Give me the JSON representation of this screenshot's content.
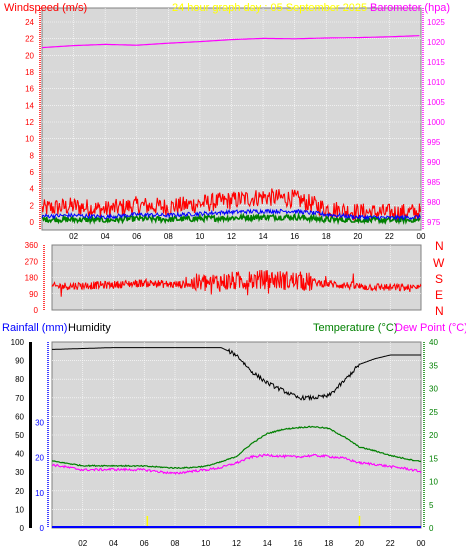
{
  "header": {
    "wind_label": "Windspeed (m/s)",
    "title": "24 hour graph day : 05 September 2025",
    "baro_label": "Barometer (hpa)"
  },
  "lower_header": {
    "rain_label": "Rainfall (mm)",
    "humidity_label": "Humidity",
    "temp_label": "Temperature (°C)",
    "dew_label": "Dew Point (°C)"
  },
  "direction_labels": [
    "N",
    "W",
    "S",
    "E",
    "N"
  ],
  "colors": {
    "panel_bg": "#d8d8d8",
    "wind_avg": "#0000ff",
    "wind_gust": "#ff0000",
    "wind_low": "#008000",
    "baro": "#ff00ff",
    "wind_dir": "#ff0000",
    "temp": "#008000",
    "dew": "#ff00ff",
    "humidity": "#000000",
    "rain": "#0000ff",
    "title": "#ffff00",
    "axis_wind": "#ff0000",
    "axis_baro": "#ff00ff",
    "axis_rain": "#0000ff",
    "axis_temp": "#008000"
  },
  "chart_data": [
    {
      "type": "line",
      "title": "24 hour graph day : 05 September 2025",
      "x_ticks": [
        "02",
        "04",
        "06",
        "08",
        "10",
        "12",
        "14",
        "16",
        "18",
        "20",
        "22",
        "00"
      ],
      "y_left": {
        "label": "Windspeed (m/s)",
        "ticks": [
          0,
          2,
          4,
          6,
          8,
          10,
          12,
          14,
          16,
          18,
          20,
          22,
          24
        ],
        "range": [
          0,
          25
        ]
      },
      "y_right": {
        "label": "Barometer (hpa)",
        "ticks": [
          975,
          980,
          985,
          990,
          995,
          1000,
          1005,
          1010,
          1015,
          1020,
          1025
        ],
        "range": [
          973,
          1027
        ]
      },
      "series": [
        {
          "name": "Barometer (hpa)",
          "x": [
            0,
            2,
            4,
            6,
            8,
            10,
            12,
            14,
            16,
            18,
            20,
            22,
            24
          ],
          "values": [
            1018.6,
            1019.1,
            1019.4,
            1019.2,
            1019.7,
            1020.1,
            1020.6,
            1020.9,
            1020.8,
            1021.0,
            1021.1,
            1021.3,
            1021.6
          ]
        },
        {
          "x": [
            0,
            2,
            4,
            6,
            8,
            10,
            12,
            14,
            16,
            18,
            20,
            22,
            24
          ],
          "values": [
            0.7,
            0.8,
            0.6,
            0.9,
            0.8,
            1.0,
            1.2,
            1.3,
            1.3,
            0.9,
            0.6,
            0.5,
            0.6
          ]
        },
        {
          "x": [
            0,
            2,
            4,
            6,
            8,
            10,
            12,
            14,
            16,
            18,
            20,
            22,
            24
          ],
          "values": [
            1.6,
            1.9,
            1.5,
            2.0,
            1.8,
            2.2,
            2.6,
            3.0,
            2.8,
            1.6,
            1.2,
            1.1,
            1.2
          ]
        },
        {
          "x": [
            0,
            2,
            4,
            6,
            8,
            10,
            12,
            14,
            16,
            18,
            20,
            22,
            24
          ],
          "values": [
            0.3,
            0.3,
            0.2,
            0.4,
            0.3,
            0.4,
            0.5,
            0.6,
            0.6,
            0.3,
            0.2,
            0.2,
            0.2
          ]
        }
      ]
    },
    {
      "type": "line",
      "y_left": {
        "ticks": [
          0,
          90,
          180,
          270,
          360
        ],
        "range": [
          0,
          360
        ]
      },
      "y_right": {
        "ticks": [
          "N",
          "W",
          "S",
          "E",
          "N"
        ]
      },
      "series": [
        {
          "x": [
            0,
            2,
            4,
            6,
            8,
            10,
            12,
            14,
            16,
            18,
            20,
            22,
            24
          ],
          "values": [
            130,
            135,
            140,
            150,
            140,
            150,
            160,
            170,
            160,
            145,
            130,
            125,
            120
          ]
        }
      ]
    },
    {
      "type": "line",
      "x_ticks": [
        "02",
        "04",
        "06",
        "08",
        "10",
        "12",
        "14",
        "16",
        "18",
        "20",
        "22",
        "00"
      ],
      "y_left": {
        "label": "Rainfall (mm)",
        "ticks": [
          0,
          10,
          20,
          30
        ],
        "range": [
          0,
          30
        ]
      },
      "y_left_humidity": {
        "label": "Humidity",
        "ticks": [
          0,
          10,
          20,
          30,
          40,
          50,
          60,
          70,
          80,
          90,
          100
        ],
        "range": [
          0,
          100
        ]
      },
      "y_right": {
        "label": "Temperature (°C)",
        "ticks": [
          0,
          5,
          10,
          15,
          20,
          25,
          30,
          35,
          40
        ],
        "range": [
          0,
          40
        ]
      },
      "series": [
        {
          "name": "Humidity",
          "x": [
            0,
            2,
            4,
            6,
            8,
            10,
            11,
            12,
            13,
            14,
            15,
            16,
            17,
            18,
            19,
            20,
            21,
            22,
            23,
            24
          ],
          "values": [
            96,
            96.5,
            97,
            97,
            97,
            97,
            97,
            93,
            84,
            78,
            74,
            70,
            70,
            71,
            79,
            88,
            91,
            93,
            93,
            93
          ]
        },
        {
          "name": "Temperature (°C)",
          "x": [
            0,
            2,
            4,
            6,
            8,
            9,
            10,
            11,
            12,
            13,
            14,
            15,
            16,
            17,
            18,
            19,
            20,
            21,
            22,
            23,
            24
          ],
          "values": [
            14.4,
            13.4,
            13.4,
            13.3,
            12.9,
            13.0,
            13.3,
            14.2,
            15.4,
            18.2,
            20.3,
            21.2,
            21.6,
            21.8,
            21.4,
            19.6,
            17.4,
            16.6,
            15.6,
            14.9,
            14.3
          ]
        },
        {
          "name": "Dew Point (°C)",
          "x": [
            0,
            2,
            4,
            6,
            8,
            9,
            10,
            11,
            12,
            13,
            14,
            15,
            16,
            17,
            18,
            19,
            20,
            21,
            22,
            23,
            24
          ],
          "values": [
            13.6,
            12.5,
            12.6,
            12.5,
            11.7,
            12.2,
            12.5,
            13.0,
            14.0,
            15.3,
            15.7,
            15.4,
            15.3,
            15.6,
            15.4,
            15.0,
            14.0,
            13.7,
            13.2,
            12.8,
            12.1
          ]
        },
        {
          "name": "Rainfall (mm)",
          "x": [
            0,
            24
          ],
          "values": [
            0,
            0
          ]
        }
      ]
    }
  ]
}
